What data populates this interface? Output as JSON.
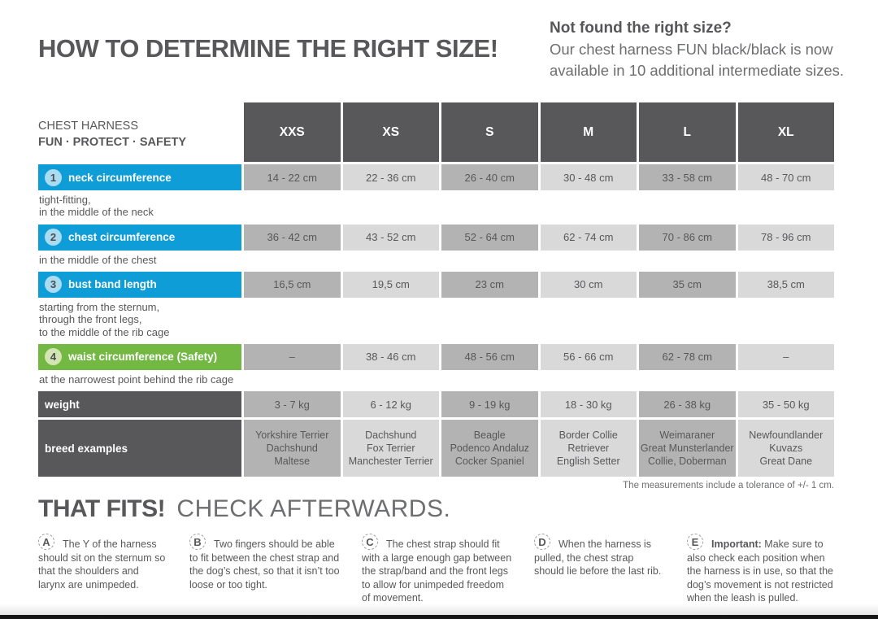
{
  "header": {
    "title": "HOW TO DETERMINE THE RIGHT SIZE!",
    "aside_title": "Not found the right size?",
    "aside_line1": "Our chest harness FUN black/black is now",
    "aside_line2": "available in 10 additional intermediate sizes."
  },
  "table": {
    "product_line1": "CHEST HARNESS",
    "product_line2": "FUN · PROTECT · SAFETY",
    "sizes": [
      "XXS",
      "XS",
      "S",
      "M",
      "L",
      "XL"
    ],
    "rows": [
      {
        "num": "1",
        "label": "neck circumference",
        "theme": "blue",
        "values": [
          "14 - 22 cm",
          "22 - 36 cm",
          "26 - 40 cm",
          "30 - 48 cm",
          "33 - 58 cm",
          "48 - 70 cm"
        ],
        "note_lines": [
          "tight-fitting,",
          "in the middle of the neck"
        ]
      },
      {
        "num": "2",
        "label": "chest circumference",
        "theme": "blue",
        "values": [
          "36 - 42 cm",
          "43 - 52 cm",
          "52 - 64 cm",
          "62 - 74 cm",
          "70 - 86 cm",
          "78 - 96 cm"
        ],
        "note_lines": [
          "in the middle of the chest"
        ]
      },
      {
        "num": "3",
        "label": "bust band length",
        "theme": "blue",
        "values": [
          "16,5 cm",
          "19,5 cm",
          "23 cm",
          "30 cm",
          "35 cm",
          "38,5 cm"
        ],
        "note_lines": [
          "starting from the sternum,",
          "through the front legs,",
          "to the middle of the rib cage"
        ]
      },
      {
        "num": "4",
        "label": "waist circumference (Safety)",
        "theme": "green",
        "values": [
          "–",
          "38 - 46 cm",
          "48 - 56 cm",
          "56 - 66 cm",
          "62 - 78 cm",
          "–"
        ],
        "note_lines": [
          "at the narrowest point behind the rib cage"
        ]
      }
    ],
    "weight_row": {
      "label": "weight",
      "values": [
        "3 - 7 kg",
        "6 - 12 kg",
        "9 - 19 kg",
        "18 - 30 kg",
        "26 - 38 kg",
        "35 - 50 kg"
      ]
    },
    "breed_row": {
      "label": "breed examples",
      "values": [
        [
          "Yorkshire Terrier",
          "Dachshund",
          "Maltese"
        ],
        [
          "Dachshund",
          "Fox Terrier",
          "Manchester Terrier"
        ],
        [
          "Beagle",
          "Podenco Andaluz",
          "Cocker Spaniel"
        ],
        [
          "Border Collie",
          "Retriever",
          "English Setter"
        ],
        [
          "Weimaraner",
          "Great Munsterlander",
          "Collie, Doberman"
        ],
        [
          "Newfoundlander",
          "Kuvazs",
          "Great Dane"
        ]
      ]
    },
    "tolerance": "The measurements include a tolerance of +/- 1 cm."
  },
  "footer": {
    "heading_bold": "THAT FITS!",
    "heading_light": "CHECK AFTERWARDS.",
    "notes": [
      {
        "letter": "A",
        "bold": "",
        "text": "The Y of the harness should sit on the sternum so that the shoulders and larynx are unimpeded."
      },
      {
        "letter": "B",
        "bold": "",
        "text": "Two fingers should be able to fit between the chest strap and the dog’s chest, so that it isn’t too loose or too tight."
      },
      {
        "letter": "C",
        "bold": "",
        "text": "The chest strap should fit with a large enough gap between the strap/band and the front legs to allow for unimpeded freedom of movement."
      },
      {
        "letter": "D",
        "bold": "",
        "text": "When the harness is pulled, the chest strap should lie before the last rib."
      },
      {
        "letter": "E",
        "bold": "Important:",
        "text": " Make sure to also check each position when the harness is in use, so that the dog’s movement is not restricted when the leash is pulled."
      }
    ]
  },
  "colors": {
    "accent_blue": "#0f9dd8",
    "accent_green": "#72b843",
    "header_gray": "#58585a",
    "cell_dark": "#b3b3b4",
    "cell_light": "#d9d9da"
  }
}
